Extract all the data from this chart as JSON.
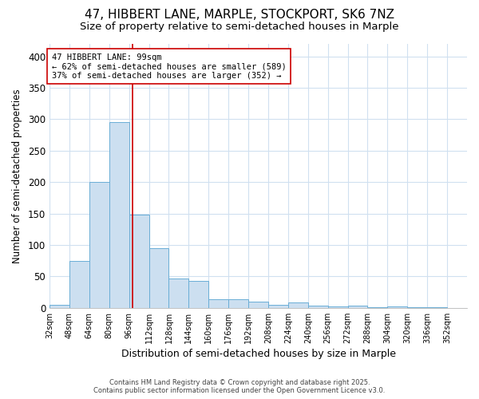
{
  "title1": "47, HIBBERT LANE, MARPLE, STOCKPORT, SK6 7NZ",
  "title2": "Size of property relative to semi-detached houses in Marple",
  "xlabel": "Distribution of semi-detached houses by size in Marple",
  "ylabel": "Number of semi-detached properties",
  "bin_labels": [
    "32sqm",
    "48sqm",
    "64sqm",
    "80sqm",
    "96sqm",
    "112sqm",
    "128sqm",
    "144sqm",
    "160sqm",
    "176sqm",
    "192sqm",
    "208sqm",
    "224sqm",
    "240sqm",
    "256sqm",
    "272sqm",
    "288sqm",
    "304sqm",
    "320sqm",
    "336sqm",
    "352sqm"
  ],
  "bin_edges": [
    32,
    48,
    64,
    80,
    96,
    112,
    128,
    144,
    160,
    176,
    192,
    208,
    224,
    240,
    256,
    272,
    288,
    304,
    320,
    336,
    352,
    368
  ],
  "bar_heights": [
    5,
    75,
    200,
    295,
    148,
    95,
    46,
    43,
    13,
    13,
    10,
    5,
    8,
    4,
    2,
    3,
    1,
    2,
    1,
    1,
    0
  ],
  "bar_color": "#ccdff0",
  "bar_edgecolor": "#6aaed6",
  "property_size": 99,
  "vline_color": "#cc0000",
  "annotation_line1": "47 HIBBERT LANE: 99sqm",
  "annotation_line2": "← 62% of semi-detached houses are smaller (589)",
  "annotation_line3": "37% of semi-detached houses are larger (352) →",
  "annotation_box_edgecolor": "#cc0000",
  "annotation_fontsize": 7.5,
  "ylim": [
    0,
    420
  ],
  "yticks": [
    0,
    50,
    100,
    150,
    200,
    250,
    300,
    350,
    400
  ],
  "footer1": "Contains HM Land Registry data © Crown copyright and database right 2025.",
  "footer2": "Contains public sector information licensed under the Open Government Licence v3.0.",
  "bg_color": "#ffffff",
  "plot_bg_color": "#ffffff",
  "grid_color": "#d0e0f0",
  "title1_fontsize": 11,
  "title2_fontsize": 9.5
}
